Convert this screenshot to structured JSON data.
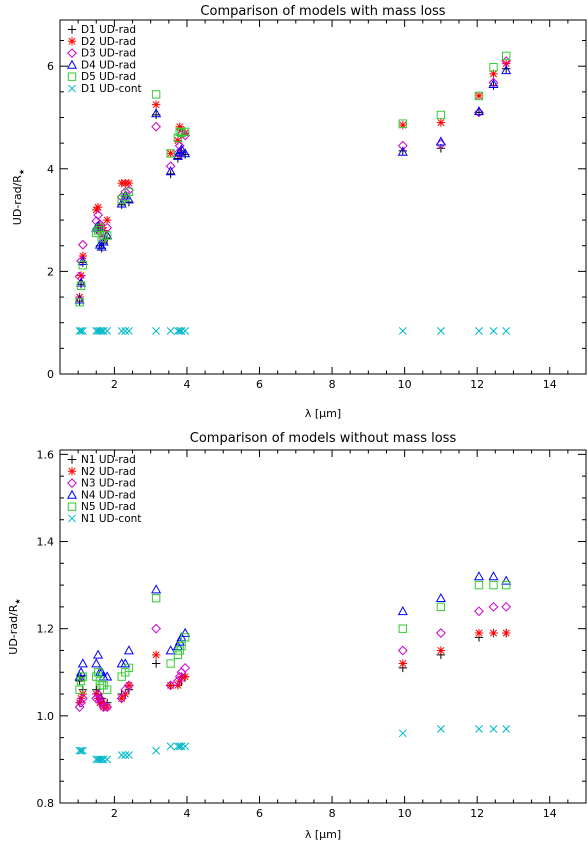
{
  "chart_data": [
    {
      "type": "scatter",
      "title": "Comparison of models with mass loss",
      "xlabel_prefix": "λ [",
      "xlabel_unit": "μm",
      "xlabel_suffix": "]",
      "ylabel_main": "UD-rad/R",
      "ylabel_sub": "★",
      "xlim": [
        0.5,
        15
      ],
      "ylim": [
        0,
        6.9
      ],
      "xticks": [
        2,
        4,
        6,
        8,
        10,
        12,
        14
      ],
      "yticks": [
        0,
        2,
        4,
        6
      ],
      "ytick_decimals": 0,
      "legend_position": "top-left",
      "x": [
        1.04,
        1.08,
        1.13,
        1.5,
        1.55,
        1.6,
        1.65,
        1.7,
        1.8,
        2.2,
        2.3,
        2.4,
        3.15,
        3.55,
        3.75,
        3.8,
        3.85,
        3.95,
        9.95,
        11.0,
        12.05,
        12.45,
        12.8
      ],
      "series": [
        {
          "name": "D1 UD-rad",
          "marker": "plus",
          "color": "#000000",
          "values": [
            1.42,
            1.75,
            2.17,
            2.82,
            2.87,
            2.5,
            2.45,
            2.55,
            2.65,
            3.3,
            3.45,
            3.35,
            5.05,
            3.9,
            4.2,
            4.3,
            4.35,
            4.28,
            4.35,
            4.4,
            5.1,
            5.62,
            5.95
          ]
        },
        {
          "name": "D2 UD-rad",
          "marker": "asterisk",
          "color": "#ff0000",
          "values": [
            1.5,
            1.92,
            2.3,
            3.2,
            3.25,
            2.9,
            2.85,
            2.8,
            3.0,
            3.72,
            3.72,
            3.72,
            5.25,
            4.3,
            4.55,
            4.82,
            4.75,
            4.7,
            4.85,
            4.9,
            5.42,
            5.85,
            6.05
          ]
        },
        {
          "name": "D3 UD-rad",
          "marker": "diamond",
          "color": "#cc00cc",
          "values": [
            1.9,
            2.2,
            2.52,
            2.98,
            3.1,
            2.92,
            2.75,
            2.65,
            2.85,
            3.45,
            3.55,
            3.58,
            4.82,
            4.05,
            4.3,
            4.45,
            4.68,
            4.65,
            4.45,
            4.48,
            5.1,
            5.68,
            6.1
          ]
        },
        {
          "name": "D4 UD-rad",
          "marker": "triangle",
          "color": "#0000ff",
          "values": [
            1.45,
            1.78,
            2.2,
            2.85,
            2.88,
            2.52,
            2.48,
            2.58,
            2.7,
            3.32,
            3.48,
            3.4,
            5.08,
            3.95,
            4.25,
            4.33,
            4.38,
            4.3,
            4.33,
            4.53,
            5.12,
            5.65,
            5.92
          ]
        },
        {
          "name": "D5 UD-rad",
          "marker": "square",
          "color": "#33cc33",
          "values": [
            1.4,
            1.72,
            2.12,
            2.75,
            2.8,
            2.85,
            2.65,
            2.7,
            2.7,
            3.4,
            3.45,
            3.55,
            5.45,
            4.3,
            4.6,
            4.72,
            4.7,
            4.72,
            4.88,
            5.05,
            5.42,
            5.98,
            6.2
          ]
        },
        {
          "name": "D1 UD-cont",
          "marker": "cross",
          "color": "#00b8c8",
          "values": [
            0.84,
            0.84,
            0.84,
            0.84,
            0.84,
            0.84,
            0.84,
            0.84,
            0.84,
            0.84,
            0.84,
            0.84,
            0.84,
            0.84,
            0.84,
            0.84,
            0.84,
            0.84,
            0.84,
            0.84,
            0.84,
            0.84,
            0.84
          ]
        }
      ]
    },
    {
      "type": "scatter",
      "title": "Comparison of models without mass loss",
      "xlabel_prefix": "λ [",
      "xlabel_unit": "μm",
      "xlabel_suffix": "]",
      "ylabel_main": "UD-rad/R",
      "ylabel_sub": "★",
      "xlim": [
        0.5,
        15
      ],
      "ylim": [
        0.8,
        1.61
      ],
      "xticks": [
        2,
        4,
        6,
        8,
        10,
        12,
        14
      ],
      "yticks": [
        0.8,
        1.0,
        1.2,
        1.4,
        1.6
      ],
      "ytick_decimals": 1,
      "legend_position": "top-left",
      "x": [
        1.04,
        1.08,
        1.13,
        1.5,
        1.55,
        1.6,
        1.65,
        1.7,
        1.8,
        2.2,
        2.3,
        2.4,
        3.15,
        3.55,
        3.75,
        3.8,
        3.85,
        3.95,
        9.95,
        11.0,
        12.05,
        12.45,
        12.8
      ],
      "series": [
        {
          "name": "N1 UD-rad",
          "marker": "plus",
          "color": "#000000",
          "values": [
            1.08,
            1.09,
            1.06,
            1.06,
            1.05,
            1.04,
            1.04,
            1.03,
            1.03,
            1.05,
            1.05,
            1.06,
            1.12,
            1.07,
            1.07,
            1.08,
            1.08,
            1.09,
            1.11,
            1.14,
            1.18,
            1.19,
            1.19
          ]
        },
        {
          "name": "N2 UD-rad",
          "marker": "asterisk",
          "color": "#ff0000",
          "values": [
            1.03,
            1.04,
            1.05,
            1.05,
            1.04,
            1.03,
            1.03,
            1.02,
            1.02,
            1.04,
            1.05,
            1.07,
            1.14,
            1.07,
            1.07,
            1.08,
            1.09,
            1.09,
            1.12,
            1.15,
            1.19,
            1.19,
            1.19
          ]
        },
        {
          "name": "N3 UD-rad",
          "marker": "diamond",
          "color": "#cc00cc",
          "values": [
            1.02,
            1.03,
            1.04,
            1.04,
            1.05,
            1.04,
            1.03,
            1.02,
            1.02,
            1.04,
            1.06,
            1.07,
            1.2,
            1.07,
            1.08,
            1.09,
            1.1,
            1.11,
            1.15,
            1.19,
            1.24,
            1.25,
            1.25
          ]
        },
        {
          "name": "N4 UD-rad",
          "marker": "triangle",
          "color": "#0000ff",
          "values": [
            1.09,
            1.1,
            1.12,
            1.12,
            1.14,
            1.1,
            1.1,
            1.09,
            1.09,
            1.12,
            1.12,
            1.15,
            1.29,
            1.15,
            1.16,
            1.17,
            1.18,
            1.19,
            1.24,
            1.27,
            1.32,
            1.32,
            1.31
          ]
        },
        {
          "name": "N5 UD-rad",
          "marker": "square",
          "color": "#33cc33",
          "values": [
            1.06,
            1.08,
            1.09,
            1.09,
            1.1,
            1.08,
            1.07,
            1.07,
            1.06,
            1.09,
            1.1,
            1.11,
            1.27,
            1.12,
            1.14,
            1.15,
            1.16,
            1.18,
            1.2,
            1.25,
            1.3,
            1.3,
            1.3
          ]
        },
        {
          "name": "N1 UD-cont",
          "marker": "cross",
          "color": "#00b8c8",
          "values": [
            0.92,
            0.92,
            0.92,
            0.9,
            0.9,
            0.9,
            0.9,
            0.9,
            0.9,
            0.91,
            0.91,
            0.91,
            0.92,
            0.93,
            0.93,
            0.93,
            0.93,
            0.93,
            0.96,
            0.97,
            0.97,
            0.97,
            0.97
          ]
        }
      ]
    }
  ]
}
